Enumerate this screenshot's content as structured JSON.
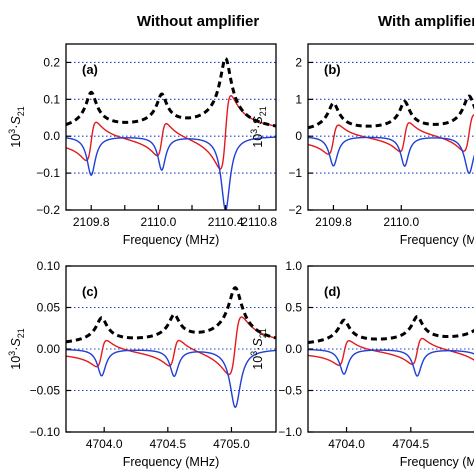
{
  "column_titles": [
    "Without amplifier",
    "With amplifier"
  ],
  "colors": {
    "red": "#e31a1c",
    "blue": "#1f3fd6",
    "black": "#000000",
    "ref": "#1f3fd6"
  },
  "chart_data": [
    {
      "type": "line",
      "panel": "(a)",
      "xlabel": "Frequency (MHz)",
      "ylabel": "10^3·S21",
      "xlim": [
        2109.65,
        2110.9
      ],
      "ylim": [
        -0.2,
        0.25
      ],
      "xticks": [
        2109.8,
        2110.0,
        2110.2,
        2110.4,
        2110.6,
        2110.8
      ],
      "xtick_labels": [
        "2109.8",
        "",
        "2110.0",
        "",
        "2110.4",
        "2110.8"
      ],
      "yticks": [
        -0.2,
        -0.1,
        0.0,
        0.1,
        0.2
      ],
      "ytick_labels": [
        "−0.2",
        "−0.1",
        "0.0",
        "0.1",
        "0.2"
      ],
      "ref_lines": [
        0.2,
        0.1,
        0.0,
        -0.1
      ],
      "resonances": [
        {
          "f0": 2109.8,
          "gamma": 0.03,
          "amp": 0.105
        },
        {
          "f0": 2110.22,
          "gamma": 0.028,
          "amp": 0.09
        },
        {
          "f0": 2110.6,
          "gamma": 0.032,
          "amp": 0.2
        }
      ],
      "series": [
        {
          "key": "magnitude",
          "color": "black",
          "dashed": true
        },
        {
          "key": "real",
          "color": "red"
        },
        {
          "key": "imag",
          "color": "blue"
        }
      ]
    },
    {
      "type": "line",
      "panel": "(b)",
      "xlabel": "Frequency (MHz)",
      "ylabel": "10^3·S21",
      "xlim": [
        2109.65,
        2110.9
      ],
      "ylim": [
        -2,
        2.5
      ],
      "xticks": [
        2109.8,
        2110.0,
        2110.2
      ],
      "xtick_labels": [
        "2109.8",
        "",
        "2110.0"
      ],
      "yticks": [
        -2,
        -1,
        0,
        1,
        2
      ],
      "ytick_labels": [
        "−2",
        "−1",
        "0",
        "1",
        "2"
      ],
      "ref_lines": [
        2,
        1,
        0,
        -1
      ],
      "resonances": [
        {
          "f0": 2109.8,
          "gamma": 0.03,
          "amp": 0.8
        },
        {
          "f0": 2110.22,
          "gamma": 0.028,
          "amp": 0.8
        },
        {
          "f0": 2110.6,
          "gamma": 0.032,
          "amp": 1.0
        }
      ],
      "series": [
        {
          "key": "magnitude",
          "color": "black",
          "dashed": true
        },
        {
          "key": "real",
          "color": "red"
        },
        {
          "key": "imag",
          "color": "blue"
        }
      ]
    },
    {
      "type": "line",
      "panel": "(c)",
      "xlabel": "Frequency (MHz)",
      "ylabel": "10^3·S21",
      "xlim": [
        4703.7,
        4705.35
      ],
      "ylim": [
        -0.1,
        0.1
      ],
      "xticks": [
        4704.0,
        4704.5,
        4705.0
      ],
      "xtick_labels": [
        "4704.0",
        "4704.5",
        "4705.0"
      ],
      "yticks": [
        -0.1,
        -0.05,
        0.0,
        0.05,
        0.1
      ],
      "ytick_labels": [
        "−0.10",
        "−0.05",
        "0.00",
        "0.05",
        "0.10"
      ],
      "ref_lines": [
        0.1,
        0.05,
        0.0,
        -0.05,
        -0.1
      ],
      "resonances": [
        {
          "f0": 4703.98,
          "gamma": 0.04,
          "amp": 0.032
        },
        {
          "f0": 4704.55,
          "gamma": 0.04,
          "amp": 0.032
        },
        {
          "f0": 4705.03,
          "gamma": 0.05,
          "amp": 0.07
        }
      ],
      "series": [
        {
          "key": "magnitude",
          "color": "black",
          "dashed": true
        },
        {
          "key": "real",
          "color": "red"
        },
        {
          "key": "imag",
          "color": "blue"
        }
      ]
    },
    {
      "type": "line",
      "panel": "(d)",
      "xlabel": "Frequency (MHz)",
      "ylabel": "10^3·S21",
      "xlim": [
        4703.7,
        4705.35
      ],
      "ylim": [
        -1,
        1
      ],
      "xticks": [
        4704.0,
        4704.5
      ],
      "xtick_labels": [
        "4704.0",
        "4704.5"
      ],
      "yticks": [
        -1,
        -0.5,
        0,
        0.5,
        1
      ],
      "ytick_labels": [
        "−1.0",
        "−0.5",
        "0.0",
        "0.5",
        "1.0"
      ],
      "ref_lines": [
        1,
        0.5,
        0,
        -0.5
      ],
      "resonances": [
        {
          "f0": 4703.98,
          "gamma": 0.04,
          "amp": 0.3
        },
        {
          "f0": 4704.55,
          "gamma": 0.04,
          "amp": 0.32
        },
        {
          "f0": 4705.15,
          "gamma": 0.05,
          "amp": 0.6
        }
      ],
      "series": [
        {
          "key": "magnitude",
          "color": "black",
          "dashed": true
        },
        {
          "key": "real",
          "color": "red"
        },
        {
          "key": "imag",
          "color": "blue"
        }
      ]
    }
  ]
}
